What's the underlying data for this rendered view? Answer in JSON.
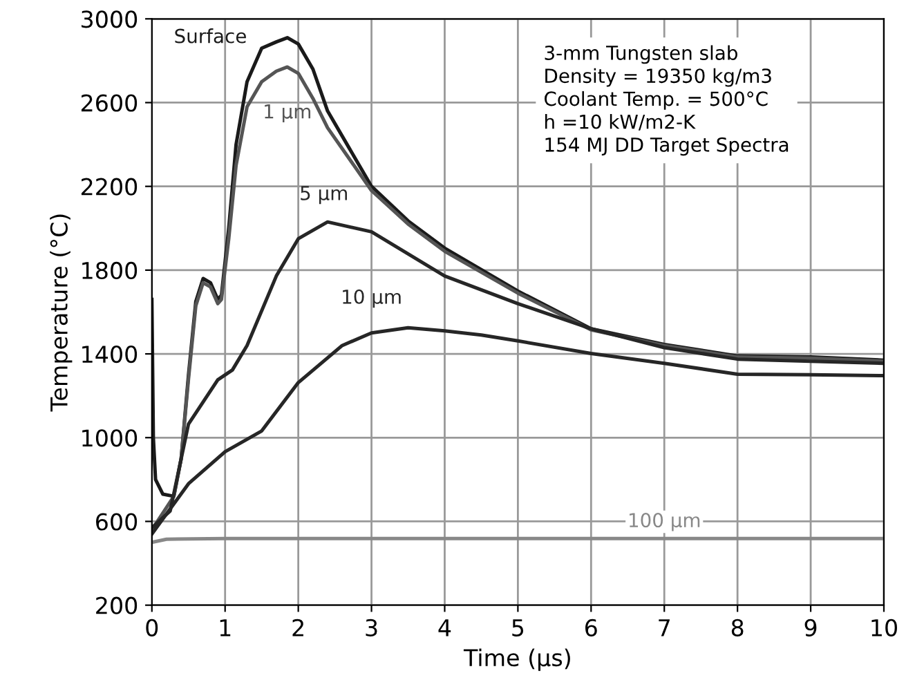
{
  "chart_data": {
    "type": "line",
    "xlabel": "Time (μs)",
    "ylabel": "Temperature (°C)",
    "xlim": [
      0,
      10
    ],
    "ylim": [
      200,
      3000
    ],
    "xticks": [
      0,
      1,
      2,
      3,
      4,
      5,
      6,
      7,
      8,
      9,
      10
    ],
    "yticks": [
      200,
      600,
      1000,
      1400,
      1800,
      2200,
      2600,
      3000
    ],
    "grid": true,
    "line_style": "solid",
    "marker": "none",
    "annotations": [
      "3-mm Tungsten slab\nDensity = 19350 kg/m3\nCoolant Temp. = 500°C\nh =10 kW/m2-K\n154 MJ DD Target Spectra"
    ],
    "series": [
      {
        "name": "Surface",
        "color": "#1a1a1a",
        "x": [
          0,
          0.02,
          0.05,
          0.15,
          0.3,
          0.4,
          0.5,
          0.6,
          0.7,
          0.8,
          0.9,
          0.95,
          1.05,
          1.15,
          1.3,
          1.5,
          1.7,
          1.85,
          2.0,
          2.2,
          2.4,
          2.7,
          3.0,
          3.5,
          4,
          5,
          6,
          7,
          8,
          9,
          10
        ],
        "values": [
          1660,
          1000,
          800,
          730,
          720,
          900,
          1300,
          1650,
          1760,
          1740,
          1660,
          1680,
          2000,
          2400,
          2700,
          2860,
          2890,
          2910,
          2880,
          2760,
          2560,
          2380,
          2200,
          2035,
          1905,
          1700,
          1520,
          1445,
          1390,
          1385,
          1370
        ]
      },
      {
        "name": "1 μm",
        "color": "#555555",
        "x": [
          0,
          0.15,
          0.3,
          0.4,
          0.5,
          0.6,
          0.7,
          0.8,
          0.9,
          0.95,
          1.05,
          1.15,
          1.3,
          1.5,
          1.7,
          1.85,
          2.0,
          2.2,
          2.4,
          2.7,
          3.0,
          3.5,
          4,
          5,
          6,
          7,
          8,
          9,
          10
        ],
        "values": [
          560,
          640,
          720,
          900,
          1280,
          1630,
          1740,
          1720,
          1640,
          1660,
          1950,
          2300,
          2580,
          2700,
          2750,
          2770,
          2740,
          2620,
          2480,
          2330,
          2180,
          2020,
          1890,
          1690,
          1515,
          1440,
          1385,
          1380,
          1365
        ]
      },
      {
        "name": "5 μm",
        "color": "#262626",
        "x": [
          0,
          0.25,
          0.5,
          0.9,
          1.1,
          1.3,
          1.7,
          2.0,
          2.4,
          3.0,
          4,
          5,
          6,
          7,
          8,
          9,
          10
        ],
        "values": [
          570,
          650,
          1065,
          1276,
          1323,
          1440,
          1772,
          1950,
          2030,
          1983,
          1772,
          1640,
          1520,
          1430,
          1375,
          1365,
          1355
        ]
      },
      {
        "name": "10 μm",
        "color": "#262626",
        "x": [
          0,
          0.5,
          1,
          1.5,
          2,
          2.6,
          3,
          3.5,
          4,
          4.5,
          5,
          6,
          7,
          8,
          9,
          10
        ],
        "values": [
          540,
          780,
          933,
          1032,
          1263,
          1440,
          1500,
          1525,
          1510,
          1490,
          1462,
          1402,
          1355,
          1303,
          1300,
          1296
        ]
      },
      {
        "name": "100 μm",
        "color": "#888888",
        "x": [
          0,
          0.2,
          1,
          2,
          4,
          6,
          8,
          10
        ],
        "values": [
          500,
          515,
          518,
          518,
          518,
          518,
          518,
          518
        ]
      }
    ]
  }
}
